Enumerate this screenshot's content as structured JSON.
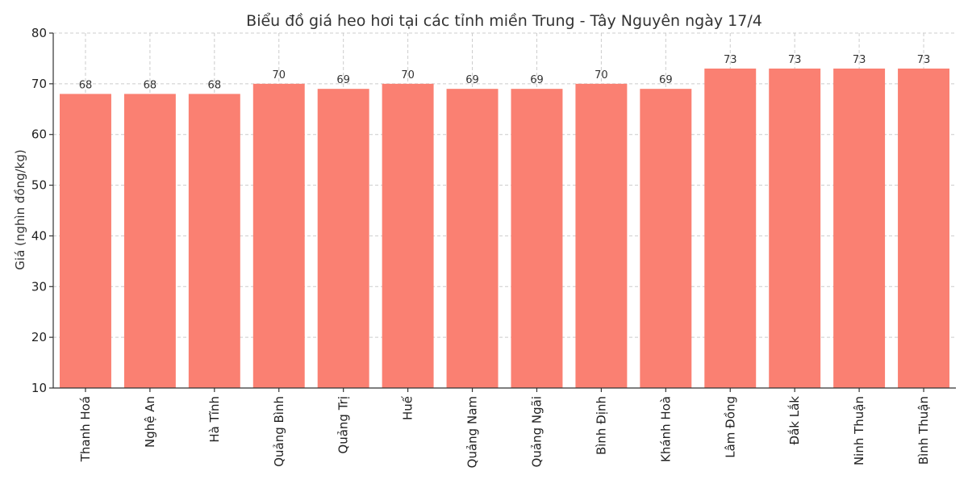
{
  "chart_data": {
    "type": "bar",
    "title": "Biểu đồ giá heo hơi tại các tỉnh miền Trung - Tây Nguyên ngày 17/4",
    "xlabel": "",
    "ylabel": "Giá (nghìn đồng/kg)",
    "ylim": [
      10,
      80
    ],
    "yticks": [
      10,
      20,
      30,
      40,
      50,
      60,
      70,
      80
    ],
    "grid": true,
    "bar_color": "#fa8072",
    "categories": [
      "Thanh Hoá",
      "Nghệ An",
      "Hà Tĩnh",
      "Quảng Bình",
      "Quảng Trị",
      "Huế",
      "Quảng Nam",
      "Quảng Ngãi",
      "Bình Định",
      "Khánh Hoà",
      "Lâm Đồng",
      "Đắk Lắk",
      "Ninh Thuận",
      "Bình Thuận"
    ],
    "values": [
      68,
      68,
      68,
      70,
      69,
      70,
      69,
      69,
      70,
      69,
      73,
      73,
      73,
      73
    ]
  }
}
